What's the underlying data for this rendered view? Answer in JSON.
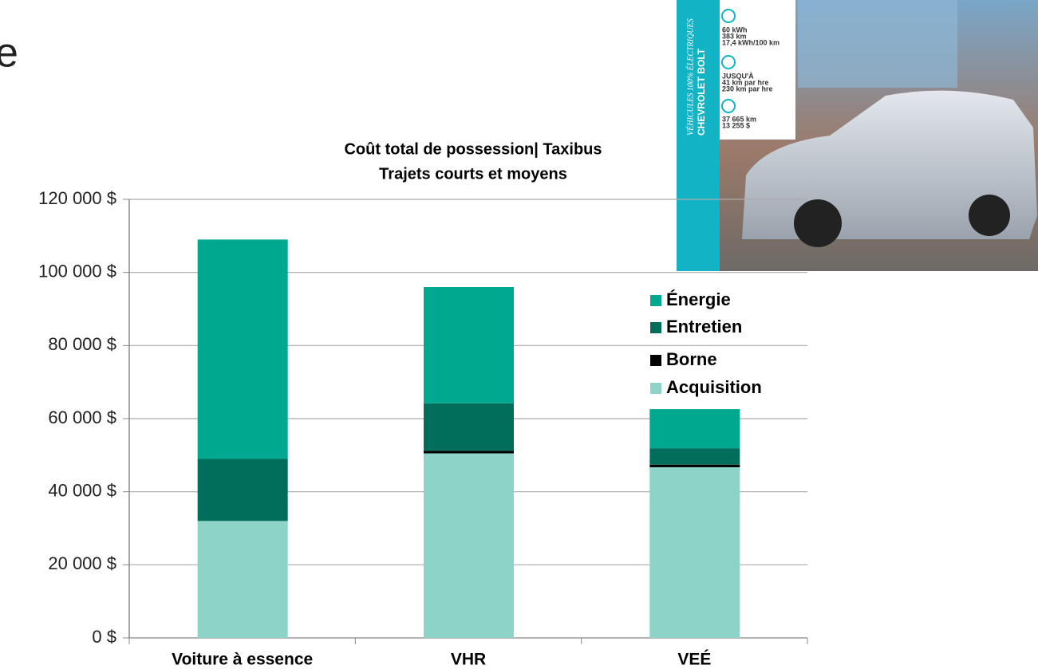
{
  "slide_fragment": "e",
  "inset": {
    "strip_lines": [
      "VÉHICULES 100% ÉLECTRIQUES",
      "CHEVROLET BOLT"
    ],
    "specs": [
      [
        "60 kWh",
        "383 km",
        "17,4 kWh/100 km"
      ],
      [
        "JUSQU'À",
        "41 km par hre",
        "230 km par hre"
      ],
      [
        "37 665 km",
        "13 255 $"
      ]
    ]
  },
  "chart_data": {
    "type": "stacked_bar",
    "title": "Coût total de possession| Taxibus",
    "subtitle": "Trajets courts et moyens",
    "categories": [
      "Voiture à essence",
      "VHR",
      "VEÉ"
    ],
    "series": [
      {
        "name": "Acquisition",
        "color": "#8dd3c8",
        "values": [
          32000,
          50500,
          46700
        ]
      },
      {
        "name": "Borne",
        "color": "#000000",
        "values": [
          0,
          700,
          700
        ]
      },
      {
        "name": "Entretien",
        "color": "#006e5a",
        "values": [
          17000,
          13000,
          4500
        ]
      },
      {
        "name": "Énergie",
        "color": "#00a88f",
        "values": [
          60000,
          31800,
          10700
        ]
      }
    ],
    "ylim": [
      0,
      120000
    ],
    "yticks": [
      {
        "value": 0,
        "label": "0 $"
      },
      {
        "value": 20000,
        "label": "20 000 $"
      },
      {
        "value": 40000,
        "label": "40 000 $"
      },
      {
        "value": 60000,
        "label": "60 000 $"
      },
      {
        "value": 80000,
        "label": "80 000 $"
      },
      {
        "value": 100000,
        "label": "100 000 $"
      },
      {
        "value": 120000,
        "label": "120 000 $"
      }
    ],
    "grid": true
  }
}
